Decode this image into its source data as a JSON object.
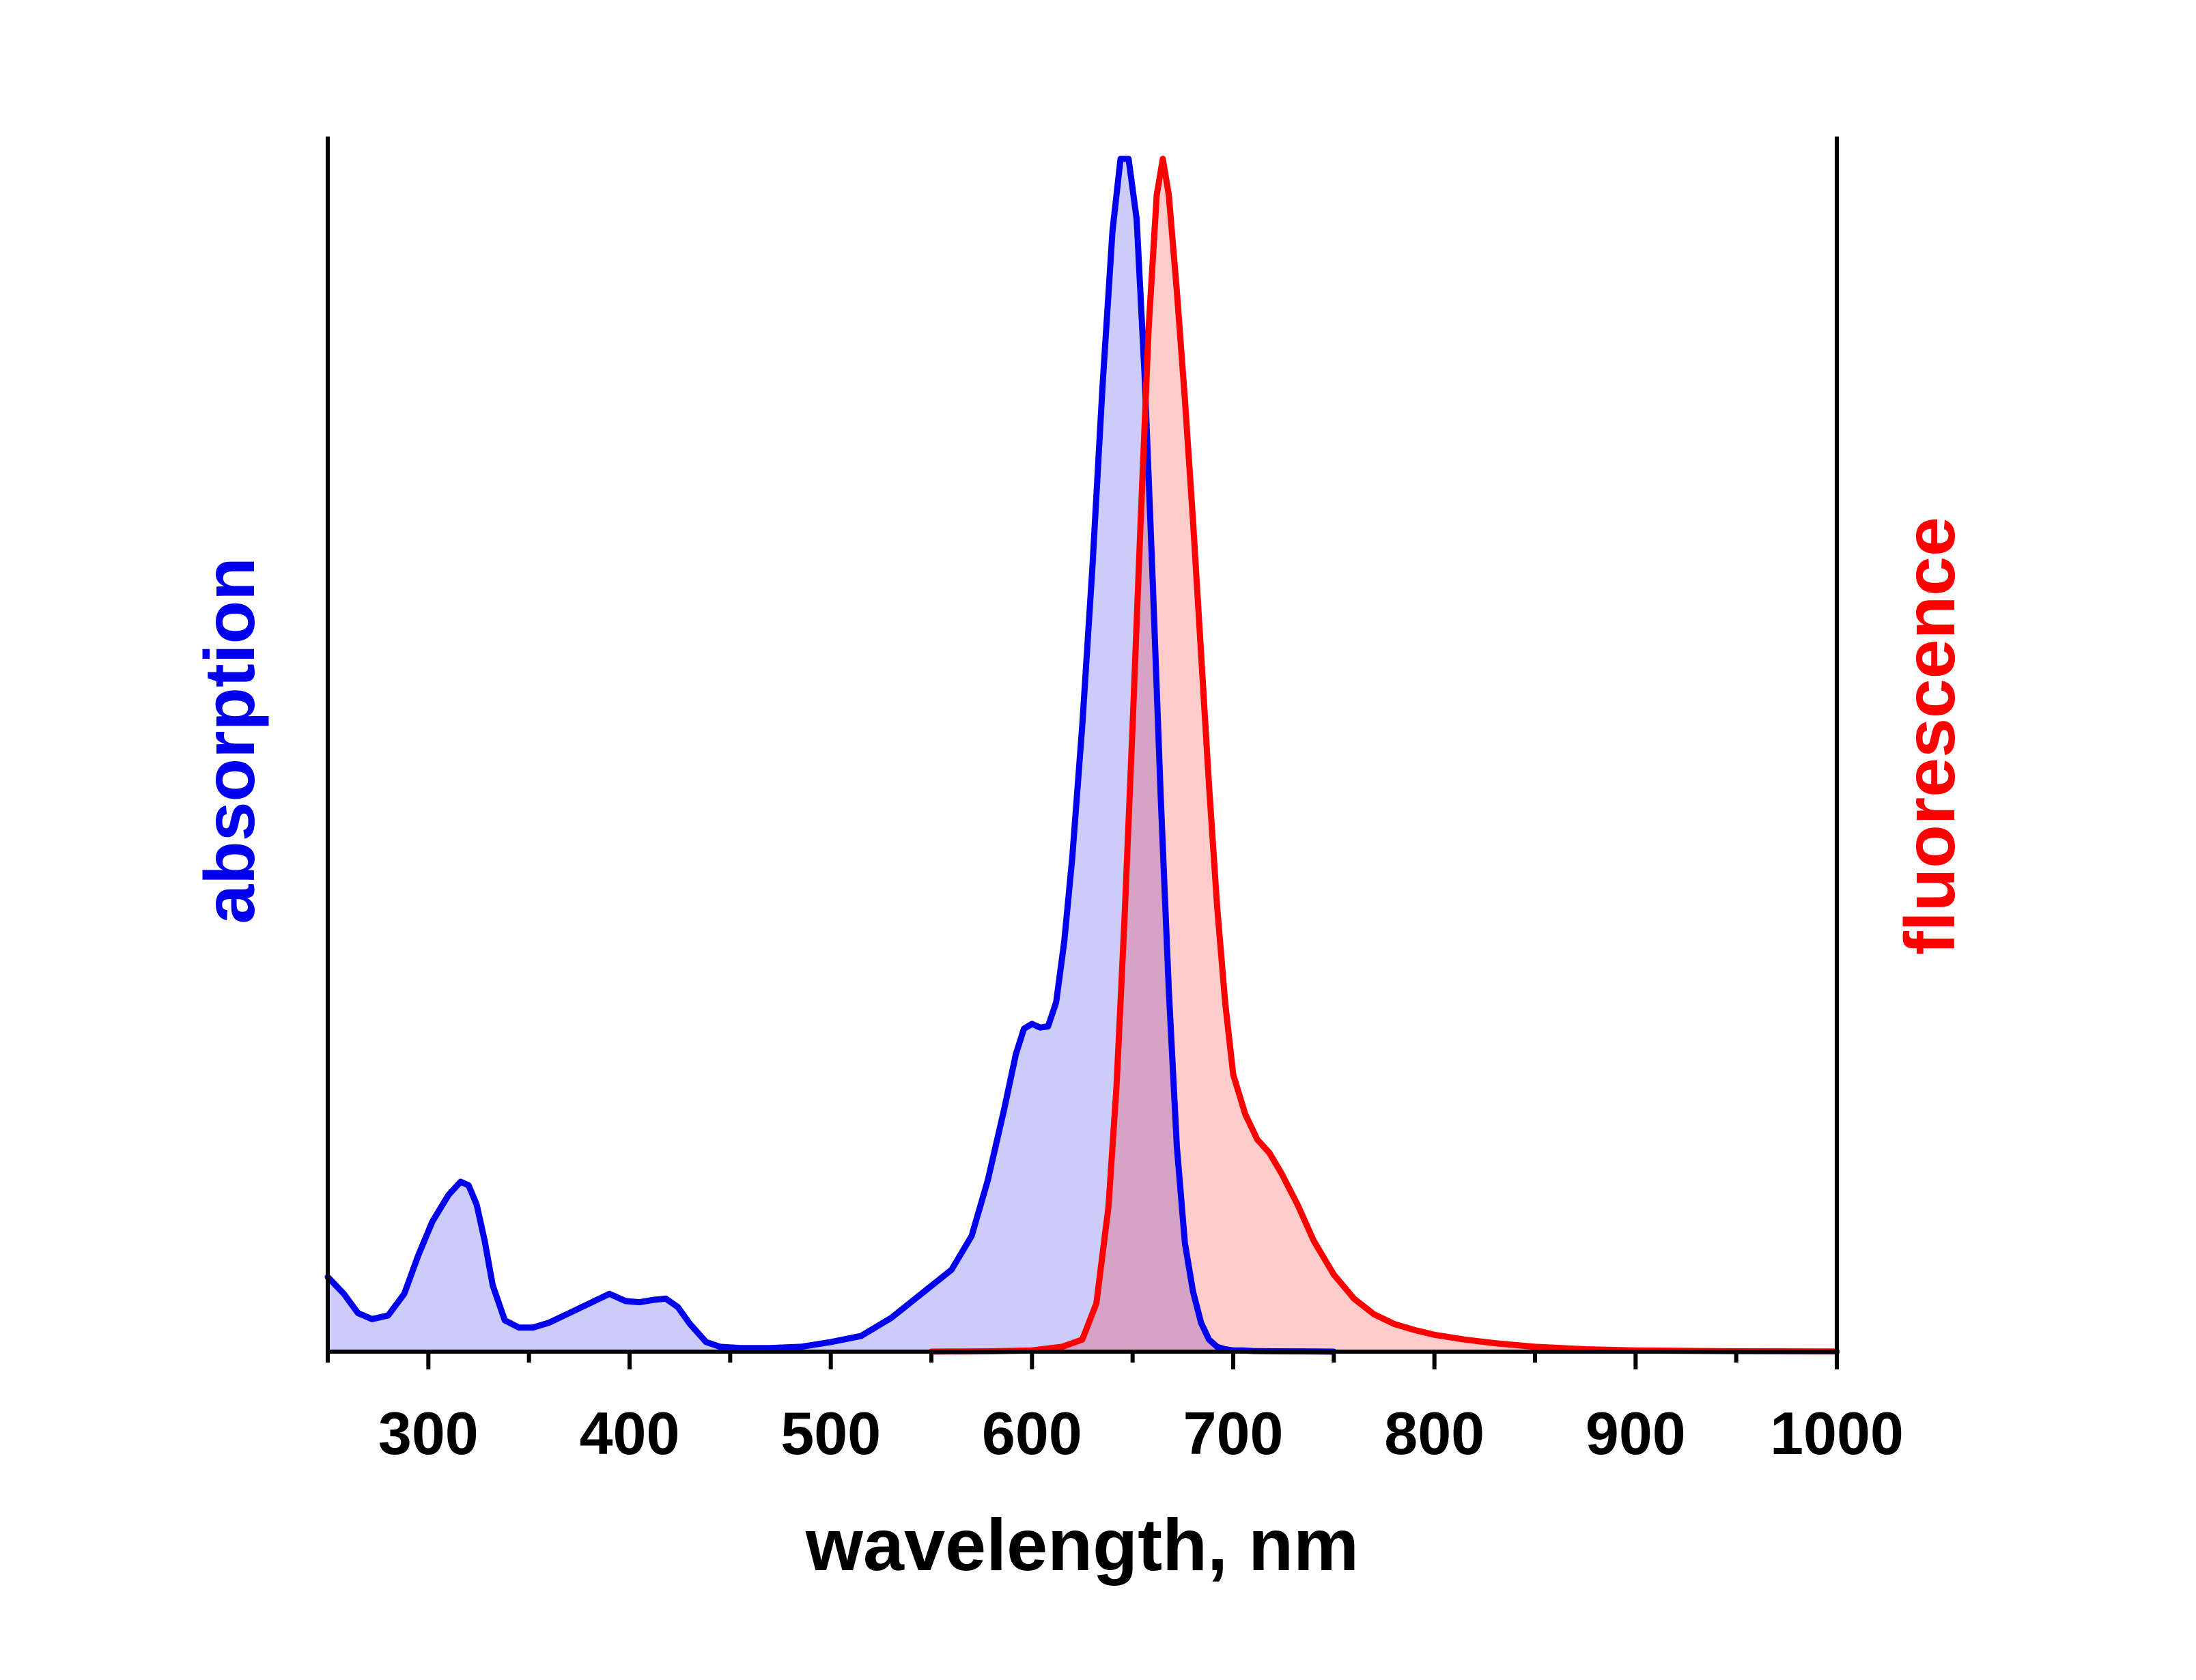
{
  "chart_data": {
    "type": "area",
    "xlabel": "wavelength, nm",
    "ylabel_left": "absorption",
    "ylabel_right": "fluorescence",
    "xlim": [
      250,
      1000
    ],
    "ylim": [
      0,
      1
    ],
    "x_ticks_major": [
      300,
      400,
      500,
      600,
      700,
      800,
      900,
      1000
    ],
    "x_tick_labels": [
      "300",
      "400",
      "500",
      "600",
      "700",
      "800",
      "900",
      "1000"
    ],
    "x_ticks_minor": [
      250,
      350,
      450,
      550,
      650,
      750,
      850,
      950
    ],
    "grid": false,
    "series": [
      {
        "name": "absorption",
        "color": "#0000ee",
        "fill": "rgba(0,0,220,0.20)",
        "x": [
          250,
          258,
          265,
          272,
          280,
          288,
          295,
          302,
          310,
          316,
          320,
          324,
          328,
          332,
          338,
          345,
          352,
          360,
          370,
          380,
          390,
          398,
          405,
          412,
          418,
          424,
          430,
          438,
          445,
          455,
          470,
          485,
          500,
          515,
          530,
          545,
          560,
          570,
          578,
          586,
          592,
          596,
          600,
          604,
          608,
          612,
          616,
          620,
          625,
          630,
          635,
          640,
          644,
          648,
          652,
          656,
          660,
          664,
          668,
          672,
          676,
          680,
          684,
          688,
          692,
          696,
          700,
          705,
          710,
          720,
          730,
          740,
          750
        ],
        "y": [
          0.062,
          0.048,
          0.032,
          0.027,
          0.03,
          0.048,
          0.08,
          0.108,
          0.13,
          0.141,
          0.138,
          0.122,
          0.092,
          0.055,
          0.026,
          0.02,
          0.02,
          0.024,
          0.032,
          0.04,
          0.048,
          0.042,
          0.041,
          0.043,
          0.044,
          0.037,
          0.023,
          0.008,
          0.004,
          0.003,
          0.003,
          0.004,
          0.008,
          0.013,
          0.028,
          0.048,
          0.068,
          0.096,
          0.142,
          0.2,
          0.247,
          0.268,
          0.272,
          0.269,
          0.27,
          0.29,
          0.34,
          0.41,
          0.52,
          0.65,
          0.8,
          0.93,
          0.99,
          0.99,
          0.94,
          0.81,
          0.64,
          0.46,
          0.3,
          0.17,
          0.09,
          0.05,
          0.024,
          0.01,
          0.004,
          0.002,
          0.001,
          0.001,
          0.0005,
          0.0003,
          0.0002,
          0.0001,
          0.0
        ]
      },
      {
        "name": "fluorescence",
        "color": "#ff0000",
        "fill": "rgba(255,0,0,0.20)",
        "x": [
          550,
          580,
          600,
          615,
          625,
          632,
          638,
          642,
          646,
          650,
          654,
          658,
          662,
          665,
          668,
          672,
          676,
          680,
          684,
          688,
          692,
          696,
          700,
          706,
          712,
          718,
          724,
          732,
          740,
          750,
          760,
          770,
          780,
          790,
          800,
          815,
          830,
          850,
          875,
          900,
          925,
          950,
          975,
          1000
        ],
        "y": [
          0.0,
          0.0003,
          0.001,
          0.004,
          0.01,
          0.04,
          0.12,
          0.22,
          0.36,
          0.52,
          0.69,
          0.85,
          0.96,
          0.99,
          0.96,
          0.88,
          0.79,
          0.69,
          0.58,
          0.47,
          0.37,
          0.29,
          0.23,
          0.197,
          0.176,
          0.165,
          0.148,
          0.122,
          0.092,
          0.064,
          0.044,
          0.031,
          0.023,
          0.018,
          0.014,
          0.01,
          0.007,
          0.004,
          0.002,
          0.001,
          0.0006,
          0.0003,
          0.0002,
          0.0001
        ]
      }
    ]
  }
}
